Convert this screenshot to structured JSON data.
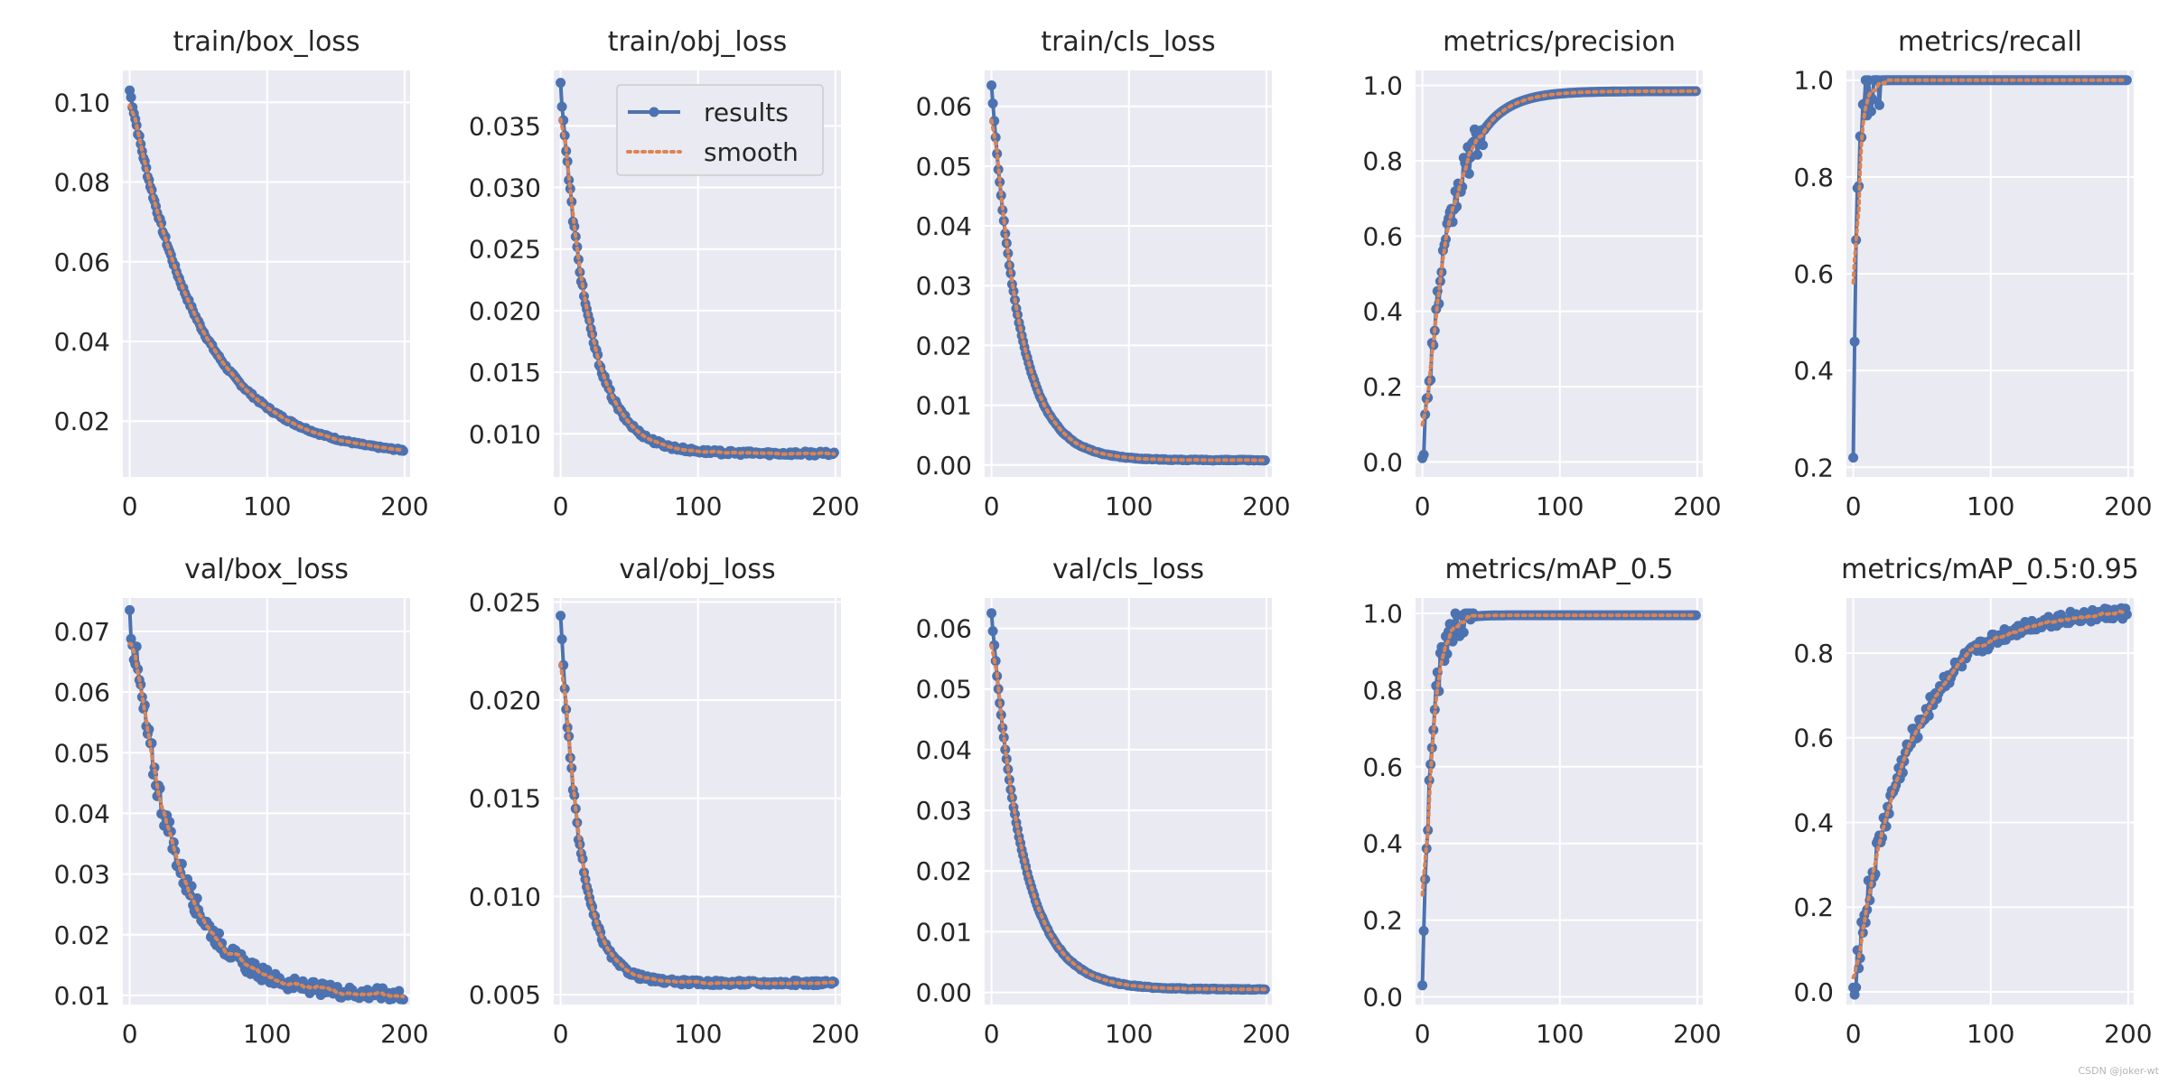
{
  "watermark": "CSDN @joker-wt",
  "colors": {
    "results": "#4c72b0",
    "smooth": "#dd8452",
    "panel_bg": "#eaeaf2",
    "grid": "#ffffff",
    "text": "#262626"
  },
  "legend": {
    "results": "results",
    "smooth": "smooth"
  },
  "x_ticks": [
    0,
    100,
    200
  ],
  "chart_data": [
    {
      "type": "line",
      "title": "train/box_loss",
      "x_range": [
        0,
        199
      ],
      "ylim": [
        0.006,
        0.108
      ],
      "y_ticks": [
        0.02,
        0.04,
        0.06,
        0.08,
        0.1
      ],
      "y_tick_labels": [
        "0.02",
        "0.04",
        "0.06",
        "0.08",
        "0.10"
      ],
      "shape": {
        "kind": "decay",
        "start": 0.103,
        "end": 0.011,
        "rate": 0.02,
        "noise": 0.0006
      }
    },
    {
      "type": "line",
      "title": "train/obj_loss",
      "legend": true,
      "x_range": [
        0,
        199
      ],
      "ylim": [
        0.0065,
        0.0395
      ],
      "y_ticks": [
        0.01,
        0.015,
        0.02,
        0.025,
        0.03,
        0.035
      ],
      "y_tick_labels": [
        "0.010",
        "0.015",
        "0.020",
        "0.025",
        "0.030",
        "0.035"
      ],
      "shape": {
        "kind": "decay",
        "start": 0.0385,
        "end": 0.0084,
        "rate": 0.05,
        "noise": 0.0004
      }
    },
    {
      "type": "line",
      "title": "train/cls_loss",
      "x_range": [
        0,
        199
      ],
      "ylim": [
        -0.002,
        0.066
      ],
      "y_ticks": [
        0.0,
        0.01,
        0.02,
        0.03,
        0.04,
        0.05,
        0.06
      ],
      "y_tick_labels": [
        "0.00",
        "0.01",
        "0.02",
        "0.03",
        "0.04",
        "0.05",
        "0.06"
      ],
      "shape": {
        "kind": "decay",
        "start": 0.0635,
        "end": 0.0008,
        "rate": 0.05,
        "noise": 0.0002
      }
    },
    {
      "type": "line",
      "title": "metrics/precision",
      "x_range": [
        0,
        199
      ],
      "ylim": [
        -0.04,
        1.04
      ],
      "y_ticks": [
        0.0,
        0.2,
        0.4,
        0.6,
        0.8,
        1.0
      ],
      "y_tick_labels": [
        "0.0",
        "0.2",
        "0.4",
        "0.6",
        "0.8",
        "1.0"
      ],
      "shape": {
        "kind": "rise",
        "start": 0.01,
        "end": 0.985,
        "rate": 0.05,
        "noise": 0.045,
        "noise_until": 45
      }
    },
    {
      "type": "line",
      "title": "metrics/recall",
      "x_range": [
        0,
        199
      ],
      "ylim": [
        0.18,
        1.02
      ],
      "y_ticks": [
        0.2,
        0.4,
        0.6,
        0.8,
        1.0
      ],
      "y_tick_labels": [
        "0.2",
        "0.4",
        "0.6",
        "0.8",
        "1.0"
      ],
      "shape": {
        "kind": "rise",
        "start": 0.22,
        "end": 1.0,
        "rate": 0.35,
        "noise": 0.06,
        "noise_until": 22
      }
    },
    {
      "type": "line",
      "title": "val/box_loss",
      "x_range": [
        0,
        199
      ],
      "ylim": [
        0.0085,
        0.0755
      ],
      "y_ticks": [
        0.01,
        0.02,
        0.03,
        0.04,
        0.05,
        0.06,
        0.07
      ],
      "y_tick_labels": [
        "0.01",
        "0.02",
        "0.03",
        "0.04",
        "0.05",
        "0.06",
        "0.07"
      ],
      "shape": {
        "kind": "decay",
        "start": 0.0735,
        "end": 0.01,
        "rate": 0.03,
        "noise": 0.0025
      }
    },
    {
      "type": "line",
      "title": "val/obj_loss",
      "x_range": [
        0,
        199
      ],
      "ylim": [
        0.0045,
        0.0252
      ],
      "y_ticks": [
        0.005,
        0.01,
        0.015,
        0.02,
        0.025
      ],
      "y_tick_labels": [
        "0.005",
        "0.010",
        "0.015",
        "0.020",
        "0.025"
      ],
      "shape": {
        "kind": "decay",
        "start": 0.0243,
        "end": 0.0056,
        "rate": 0.07,
        "noise": 0.0003
      }
    },
    {
      "type": "line",
      "title": "val/cls_loss",
      "x_range": [
        0,
        199
      ],
      "ylim": [
        -0.002,
        0.065
      ],
      "y_ticks": [
        0.0,
        0.01,
        0.02,
        0.03,
        0.04,
        0.05,
        0.06
      ],
      "y_tick_labels": [
        "0.00",
        "0.01",
        "0.02",
        "0.03",
        "0.04",
        "0.05",
        "0.06"
      ],
      "shape": {
        "kind": "decay",
        "start": 0.0625,
        "end": 0.0005,
        "rate": 0.045,
        "noise": 0.0002
      }
    },
    {
      "type": "line",
      "title": "metrics/mAP_0.5",
      "x_range": [
        0,
        199
      ],
      "ylim": [
        -0.02,
        1.04
      ],
      "y_ticks": [
        0.0,
        0.2,
        0.4,
        0.6,
        0.8,
        1.0
      ],
      "y_tick_labels": [
        "0.0",
        "0.2",
        "0.4",
        "0.6",
        "0.8",
        "1.0"
      ],
      "shape": {
        "kind": "rise",
        "start": 0.03,
        "end": 0.995,
        "rate": 0.15,
        "noise": 0.04,
        "noise_until": 38
      }
    },
    {
      "type": "line",
      "title": "metrics/mAP_0.5:0.95",
      "x_range": [
        0,
        199
      ],
      "ylim": [
        -0.03,
        0.93
      ],
      "y_ticks": [
        0.0,
        0.2,
        0.4,
        0.6,
        0.8
      ],
      "y_tick_labels": [
        "0.0",
        "0.2",
        "0.4",
        "0.6",
        "0.8"
      ],
      "shape": {
        "kind": "rise",
        "start": 0.01,
        "end": 0.9,
        "rate": 0.025,
        "noise": 0.035
      }
    }
  ]
}
